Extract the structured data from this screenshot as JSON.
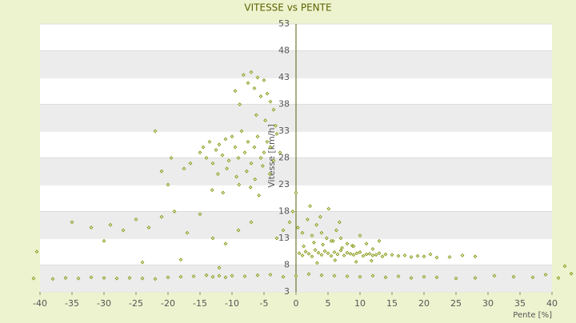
{
  "chart_data": {
    "type": "scatter",
    "title": "VITESSE vs PENTE",
    "x_label": "Pente [%]",
    "y_label": "Vitesse [km/h]",
    "xlim": [
      -40,
      40
    ],
    "xticks": [
      -40,
      -35,
      -30,
      -25,
      -20,
      -15,
      -10,
      -5,
      0,
      5,
      10,
      15,
      20,
      25,
      30,
      35,
      40
    ],
    "ylim": [
      3,
      53
    ],
    "yticks": [
      3,
      8,
      13,
      18,
      23,
      28,
      33,
      38,
      43,
      48,
      53
    ],
    "grid": true,
    "series": [
      {
        "color": "#7a8c00",
        "x": [
          -41,
          -38,
          -36,
          -34,
          -32,
          -30,
          -28,
          -26,
          -24,
          -22,
          -20,
          -18,
          -16,
          -14,
          -13,
          -12,
          -11,
          -10,
          -8,
          -6,
          -4,
          -2,
          0,
          2,
          4,
          6,
          8,
          10,
          12,
          14,
          16,
          18,
          20,
          22,
          25,
          28,
          31,
          34,
          37,
          39,
          41,
          42,
          43,
          -40.5,
          0.5,
          1,
          1.5,
          2,
          2.5,
          3,
          3.5,
          4,
          4.5,
          5,
          5.5,
          6,
          6.5,
          7,
          7.5,
          8,
          8.5,
          9,
          9.5,
          10,
          10.5,
          11,
          11.5,
          12,
          12.5,
          13,
          13.5,
          14,
          15,
          16,
          17,
          18,
          19,
          20,
          21,
          22,
          24,
          26,
          28,
          1.2,
          2.8,
          4.2,
          5.8,
          7.2,
          8.8,
          3.3,
          6.1,
          9.4,
          11.8,
          -15,
          -14.5,
          -14,
          -13.5,
          -13,
          -12.5,
          -12,
          -11.5,
          -11,
          -10.5,
          -10,
          -9.5,
          -9,
          -8.5,
          -8,
          -7.5,
          -7,
          -6.5,
          -6,
          -5.5,
          -5,
          -4.5,
          -4,
          -3.5,
          -3,
          -2.5,
          -12.2,
          -10.8,
          -9.3,
          -7.7,
          -6.4,
          -5.2,
          -4.1,
          -13.1,
          -11.4,
          -8.9,
          -7.1,
          -5.8,
          -16.5,
          -17.5,
          -19.5,
          -20,
          -21,
          -8.2,
          -7.5,
          -7,
          -6.5,
          -6,
          -5.5,
          -5,
          -4.5,
          -4,
          -3.5,
          -9.5,
          -8.8,
          -6.2,
          -4.8,
          -3.2,
          -22,
          -35,
          -32,
          -29,
          -27,
          -25,
          -23,
          -21,
          -19,
          -17,
          -15,
          -13,
          -11,
          -9,
          -7,
          -24,
          -18,
          -12,
          -30,
          0.3,
          1,
          1.8,
          2.5,
          3.2,
          4,
          4.8,
          5.5,
          6.3,
          7,
          8,
          9,
          10,
          11,
          12,
          13,
          -1,
          -2,
          -3,
          -0.5,
          0,
          2.2,
          3.8,
          5.1,
          6.8
        ],
        "values": [
          5.5,
          5.4,
          5.6,
          5.5,
          5.7,
          5.6,
          5.5,
          5.6,
          5.5,
          5.4,
          5.7,
          5.8,
          5.9,
          6.1,
          5.8,
          6.0,
          5.7,
          6.0,
          5.9,
          6.1,
          6.2,
          5.8,
          6.0,
          6.3,
          6.1,
          6.0,
          5.9,
          5.8,
          6.0,
          5.7,
          5.9,
          5.6,
          5.8,
          5.7,
          5.5,
          5.6,
          6.0,
          5.8,
          5.7,
          6.2,
          5.6,
          7.8,
          6.4,
          10.5,
          10.2,
          9.8,
          10.5,
          10.1,
          9.6,
          10.8,
          10.3,
          9.9,
          10.6,
          10.2,
          9.7,
          10.4,
          10.0,
          10.7,
          9.8,
          10.3,
          10.1,
          9.9,
          10.2,
          10.4,
          9.7,
          10.0,
          10.1,
          9.8,
          9.9,
          10.2,
          9.6,
          10.0,
          9.9,
          9.7,
          9.8,
          9.5,
          9.7,
          9.6,
          10.0,
          9.4,
          9.5,
          9.8,
          9.6,
          11.5,
          12.2,
          11.8,
          12.5,
          11.2,
          11.6,
          8.4,
          8.9,
          8.6,
          8.8,
          29,
          30,
          28,
          31,
          27,
          29.5,
          30.5,
          28.5,
          31.5,
          27.5,
          32,
          30,
          28,
          33,
          29,
          31,
          27,
          30,
          32,
          28,
          29,
          31,
          30,
          27.5,
          32.5,
          29,
          25,
          26,
          24.5,
          25.5,
          24,
          26.5,
          25,
          22,
          21.5,
          23,
          22.5,
          21,
          27,
          26,
          28,
          23,
          25.5,
          43.5,
          42,
          44,
          41,
          43,
          39.5,
          42.5,
          40,
          38.5,
          37,
          40.5,
          38,
          36,
          35,
          34,
          33,
          16,
          15,
          15.5,
          14.5,
          16.5,
          15,
          17,
          18,
          14,
          17.5,
          13,
          12,
          14.5,
          16,
          8.5,
          9,
          7.5,
          12.5,
          15,
          14,
          16.5,
          13.5,
          15.5,
          14,
          13,
          12.5,
          14.5,
          13,
          12,
          11.5,
          13.5,
          12,
          11,
          12.5,
          16,
          14.5,
          13,
          18,
          21.5,
          19,
          17,
          18.5,
          16
        ]
      }
    ]
  }
}
